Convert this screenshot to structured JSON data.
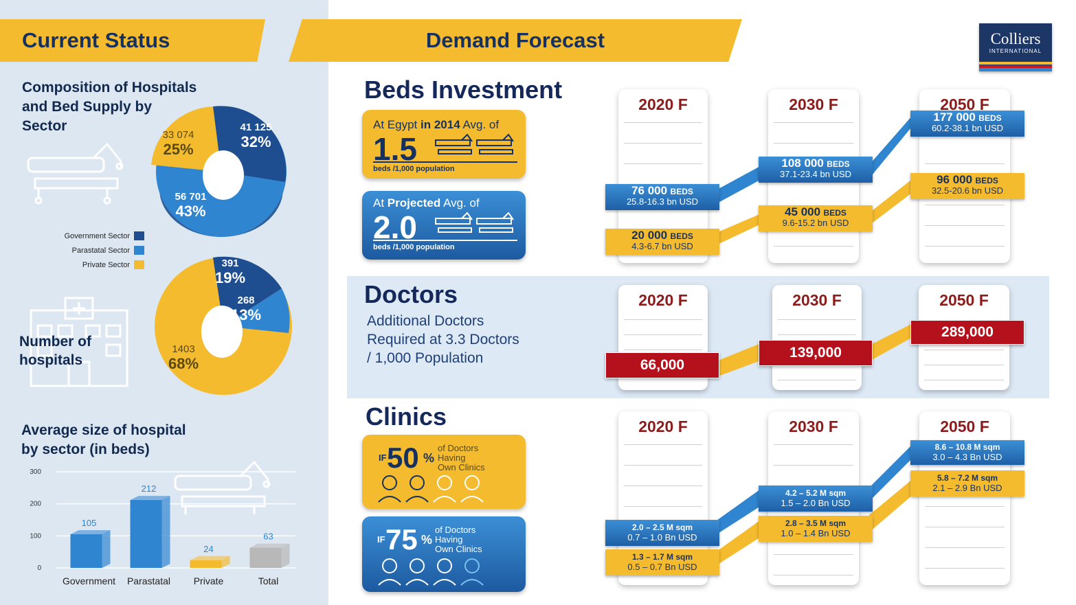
{
  "header": {
    "left_title": "Current Status",
    "center_title": "Demand Forecast",
    "logo_line1": "Colliers",
    "logo_line2": "INTERNATIONAL"
  },
  "composition": {
    "title_line1": "Composition of Hospitals",
    "title_line2": "and Bed Supply by",
    "title_line3": "Sector",
    "slices": [
      {
        "sector": "Government Sector",
        "value": "41 125",
        "pct": "32%",
        "color": "#1e4e8f"
      },
      {
        "sector": "Parastatal Sector",
        "value": "56 701",
        "pct": "43%",
        "color": "#2f85d0"
      },
      {
        "sector": "Private Sector",
        "value": "33 074",
        "pct": "25%",
        "color": "#f5bb2f"
      }
    ]
  },
  "legend": {
    "items": [
      {
        "label": "Government Sector",
        "color": "#1e4e8f"
      },
      {
        "label": "Parastatal Sector",
        "color": "#2f85d0"
      },
      {
        "label": "Private Sector",
        "color": "#f5bb2f"
      }
    ]
  },
  "hospitals": {
    "title_line1": "Number of",
    "title_line2": "hospitals",
    "slices": [
      {
        "value": "391",
        "pct": "19%"
      },
      {
        "value": "268",
        "pct": "13%"
      },
      {
        "value": "1403",
        "pct": "68%"
      }
    ]
  },
  "avg_size": {
    "title_line1": "Average size of hospital",
    "title_line2": "by sector (in beds)"
  },
  "chart_data": {
    "type": "bar",
    "title": "Average size of hospital by sector (in beds)",
    "categories": [
      "Government",
      "Parastatal",
      "Private",
      "Total"
    ],
    "values": [
      105,
      212,
      24,
      63
    ],
    "value_labels": [
      "105",
      "212",
      "24",
      "63"
    ],
    "colors": [
      "#2f85d0",
      "#2f85d0",
      "#f5bb2f",
      "#b8b8b8"
    ],
    "yticks": [
      "300",
      "200",
      "100",
      "0"
    ],
    "ylim": [
      0,
      300
    ],
    "grid": true
  },
  "beds": {
    "title": "Beds Investment",
    "card1": {
      "line_a": "At Egypt",
      "line_b": "in 2014",
      "line_c": "Avg. of",
      "value": "1.5",
      "unit": "beds /1,000 population"
    },
    "card2": {
      "line_a": "At",
      "line_b": "Projected",
      "line_c": "Avg. of",
      "value": "2.0",
      "unit": "beds /1,000 population"
    },
    "years": [
      "2020 F",
      "2030 F",
      "2050 F"
    ],
    "blue": [
      {
        "value": "76 000",
        "unit": "BEDS",
        "sub": "25.8-16.3 bn USD"
      },
      {
        "value": "108 000",
        "unit": "BEDS",
        "sub": "37.1-23.4 bn USD"
      },
      {
        "value": "177 000",
        "unit": "BEDS",
        "sub": "60.2-38.1 bn USD"
      }
    ],
    "yellow": [
      {
        "value": "20 000",
        "unit": "BEDS",
        "sub": "4.3-6.7 bn USD"
      },
      {
        "value": "45 000",
        "unit": "BEDS",
        "sub": "9.6-15.2 bn USD"
      },
      {
        "value": "96 000",
        "unit": "BEDS",
        "sub": "32.5-20.6 bn USD"
      }
    ]
  },
  "doctors": {
    "title": "Doctors",
    "desc_line1": "Additional Doctors",
    "desc_line2": "Required at 3.3 Doctors",
    "desc_line3": "/ 1,000 Population",
    "years": [
      "2020 F",
      "2030 F",
      "2050 F"
    ],
    "values": [
      "66,000",
      "139,000",
      "289,000"
    ]
  },
  "clinics": {
    "title": "Clinics",
    "card1": {
      "if": "IF",
      "pct": "50",
      "pct_sign": "%",
      "l1": "of Doctors",
      "l2": "Having",
      "l3": "Own Clinics"
    },
    "card2": {
      "if": "IF",
      "pct": "75",
      "pct_sign": "%",
      "l1": "of Doctors",
      "l2": "Having",
      "l3": "Own Clinics"
    },
    "years": [
      "2020 F",
      "2030 F",
      "2050 F"
    ],
    "blue": [
      {
        "l1": "2.0 – 2.5 M sqm",
        "l2": "0.7 – 1.0 Bn USD"
      },
      {
        "l1": "4.2 – 5.2 M sqm",
        "l2": "1.5 – 2.0 Bn USD"
      },
      {
        "l1": "8.6 – 10.8 M sqm",
        "l2": "3.0 – 4.3 Bn USD"
      }
    ],
    "yellow": [
      {
        "l1": "1.3 – 1.7 M sqm",
        "l2": "0.5 – 0.7 Bn USD"
      },
      {
        "l1": "2.8 – 3.5 M sqm",
        "l2": "1.0 – 1.4 Bn USD"
      },
      {
        "l1": "5.8 – 7.2 M sqm",
        "l2": "2.1 – 2.9 Bn USD"
      }
    ]
  }
}
